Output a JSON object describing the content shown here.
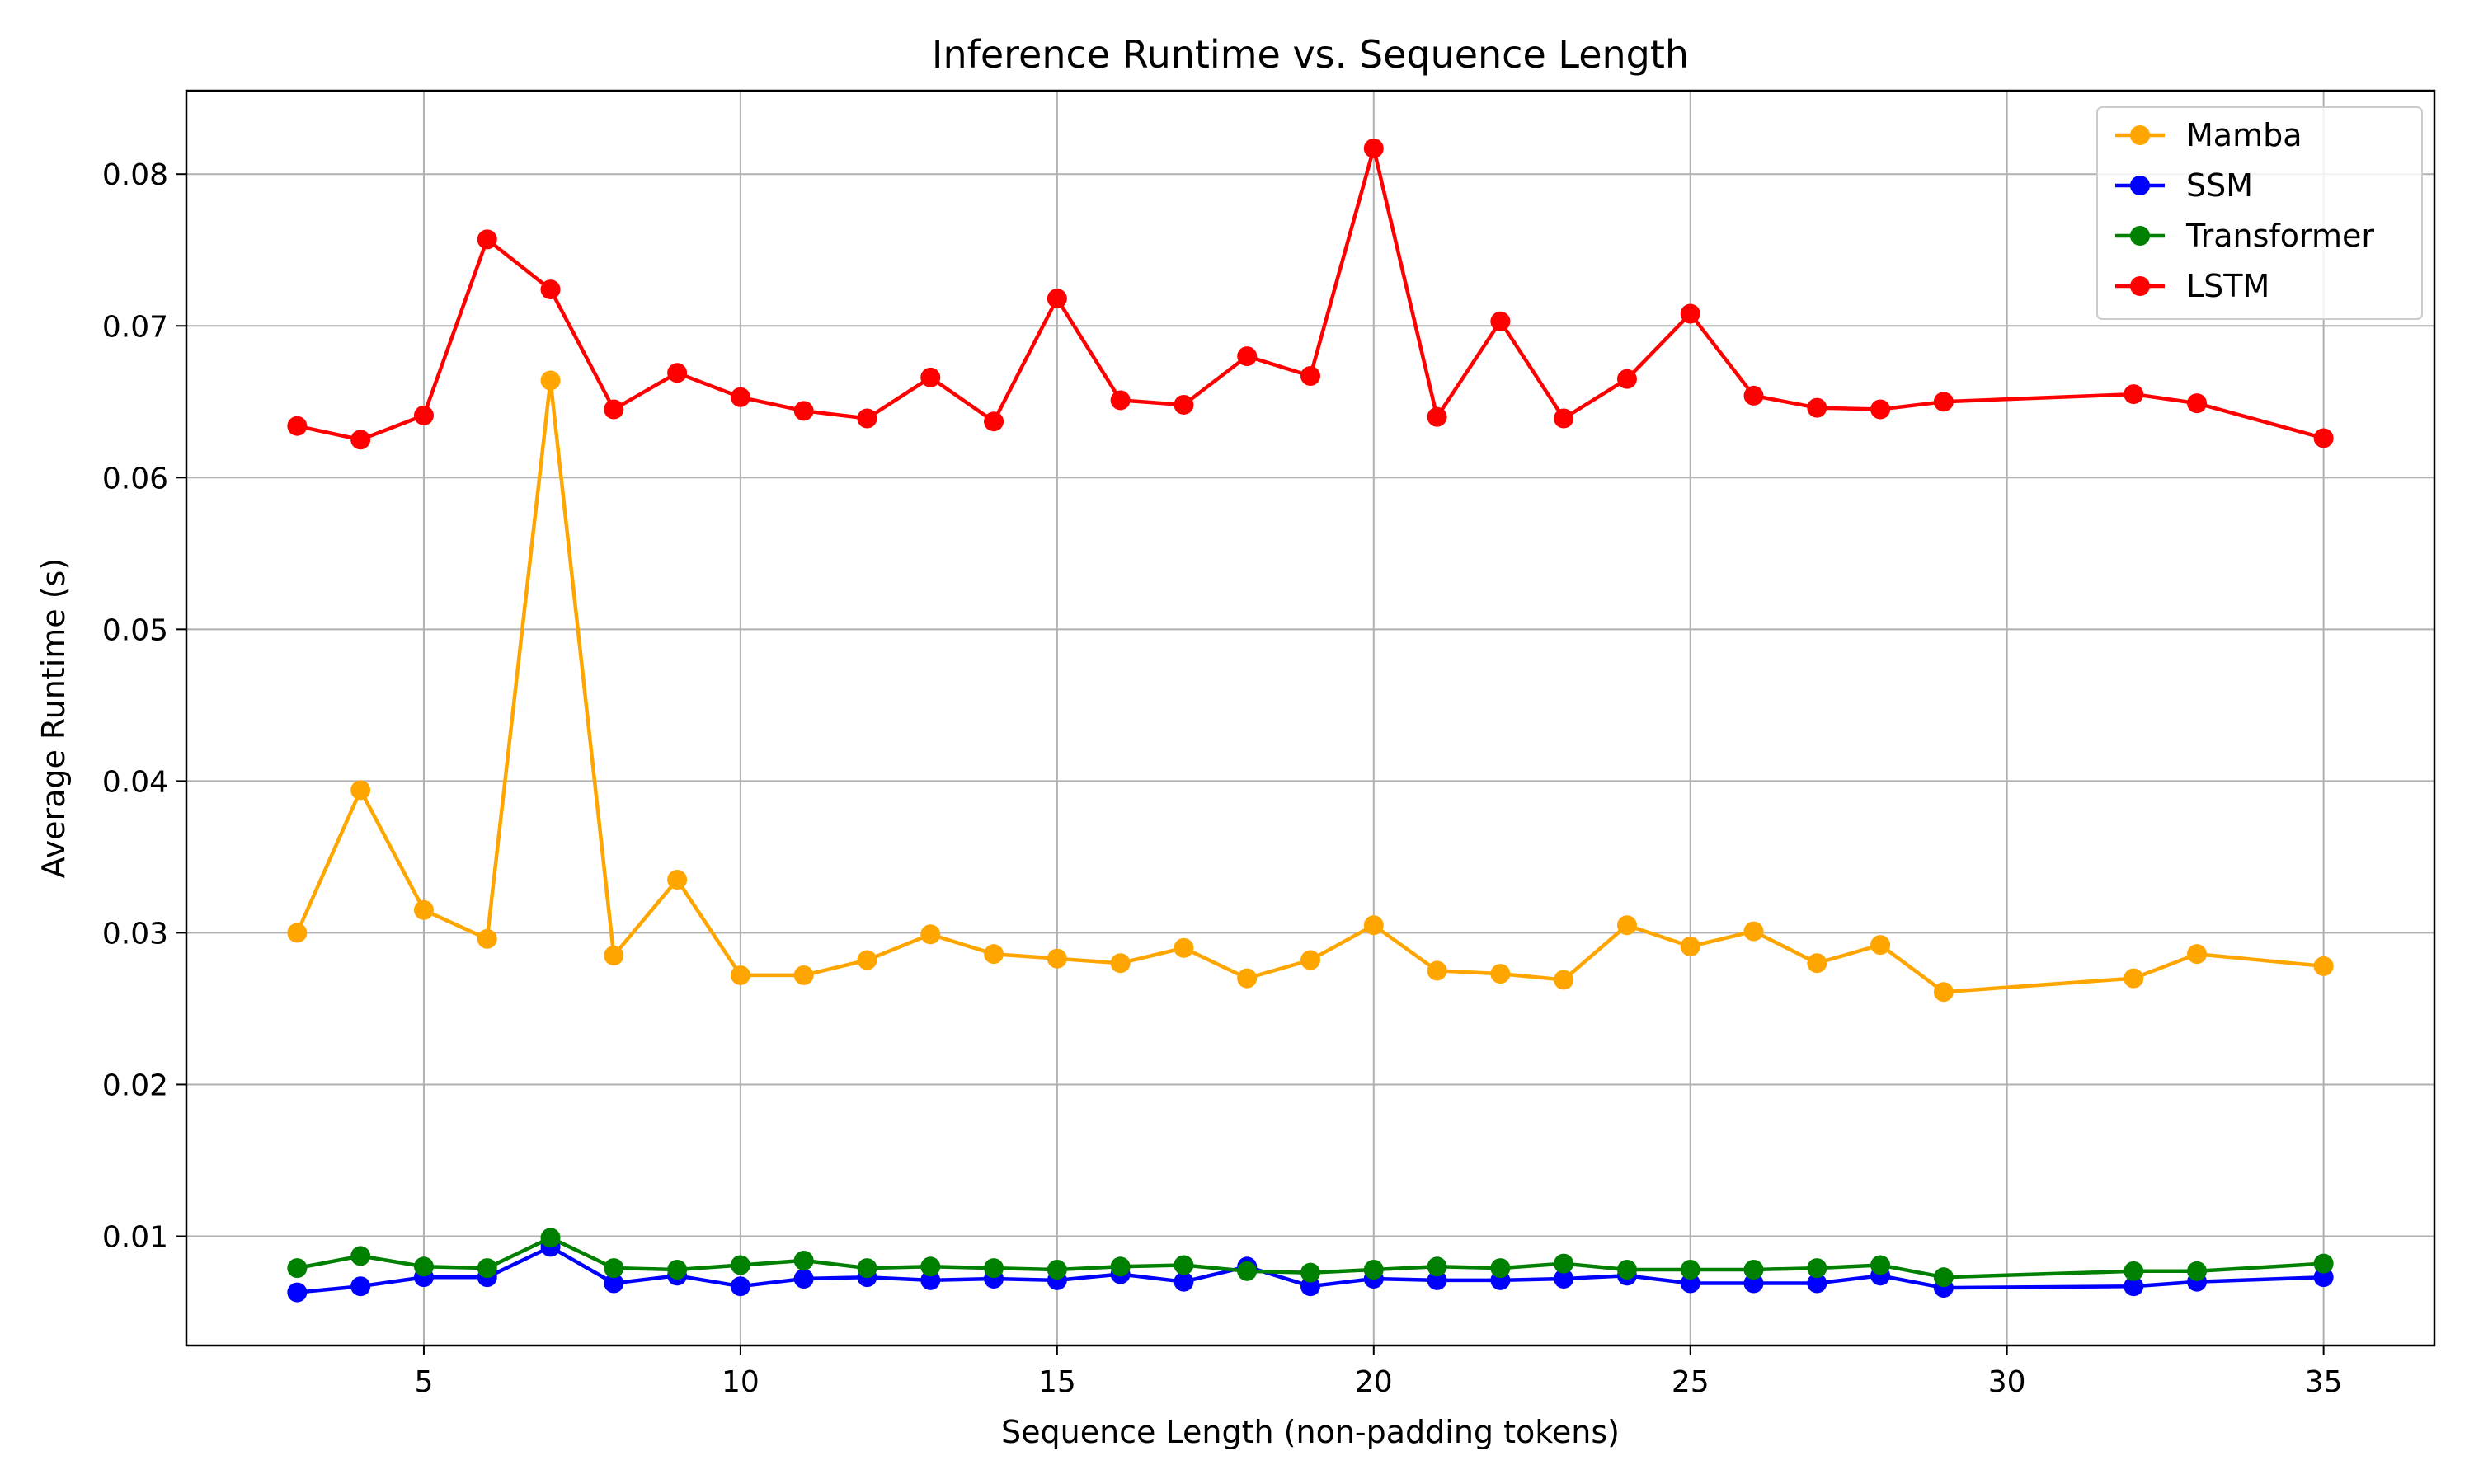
{
  "chart_data": {
    "type": "line",
    "title": "Inference Runtime vs. Sequence Length",
    "xlabel": "Sequence Length (non-padding tokens)",
    "ylabel": "Average Runtime (s)",
    "xlim": [
      1.25,
      36.75
    ],
    "ylim": [
      0.0028,
      0.0855
    ],
    "xticks": [
      5,
      10,
      15,
      20,
      25,
      30,
      35
    ],
    "yticks": [
      0.01,
      0.02,
      0.03,
      0.04,
      0.05,
      0.06,
      0.07,
      0.08
    ],
    "grid": true,
    "legend_position": "top-right",
    "x": [
      3,
      4,
      5,
      6,
      7,
      8,
      9,
      10,
      11,
      12,
      13,
      14,
      15,
      16,
      17,
      18,
      19,
      20,
      21,
      22,
      23,
      24,
      25,
      26,
      27,
      28,
      29,
      32,
      33,
      35
    ],
    "series": [
      {
        "name": "Mamba",
        "color": "#ffa500",
        "values": [
          0.03,
          0.0394,
          0.0315,
          0.0296,
          0.0664,
          0.0285,
          0.0335,
          0.0272,
          0.0272,
          0.0282,
          0.0299,
          0.0286,
          0.0283,
          0.028,
          0.029,
          0.027,
          0.0282,
          0.0305,
          0.0275,
          0.0273,
          0.0269,
          0.0305,
          0.0291,
          0.0301,
          0.028,
          0.0292,
          0.0261,
          0.027,
          0.0286,
          0.0278
        ]
      },
      {
        "name": "SSM",
        "color": "#0000ff",
        "values": [
          0.0063,
          0.0067,
          0.0073,
          0.0073,
          0.0093,
          0.0069,
          0.0074,
          0.0067,
          0.0072,
          0.0073,
          0.0071,
          0.0072,
          0.0071,
          0.0075,
          0.007,
          0.008,
          0.0067,
          0.0072,
          0.0071,
          0.0071,
          0.0072,
          0.0074,
          0.0069,
          0.0069,
          0.0069,
          0.0074,
          0.0066,
          0.0067,
          0.007,
          0.0073
        ]
      },
      {
        "name": "Transformer",
        "color": "#008000",
        "values": [
          0.0079,
          0.0087,
          0.008,
          0.0079,
          0.0099,
          0.0079,
          0.0078,
          0.0081,
          0.0084,
          0.0079,
          0.008,
          0.0079,
          0.0078,
          0.008,
          0.0081,
          0.0077,
          0.0076,
          0.0078,
          0.008,
          0.0079,
          0.0082,
          0.0078,
          0.0078,
          0.0078,
          0.0079,
          0.0081,
          0.0073,
          0.0077,
          0.0077,
          0.0082
        ]
      },
      {
        "name": "LSTM",
        "color": "#ff0000",
        "values": [
          0.0634,
          0.0625,
          0.0641,
          0.0757,
          0.0724,
          0.0645,
          0.0669,
          0.0653,
          0.0644,
          0.0639,
          0.0666,
          0.0637,
          0.0718,
          0.0651,
          0.0648,
          0.068,
          0.0667,
          0.0817,
          0.064,
          0.0703,
          0.0639,
          0.0665,
          0.0708,
          0.0654,
          0.0646,
          0.0645,
          0.065,
          0.0655,
          0.0649,
          0.0626
        ]
      }
    ]
  }
}
